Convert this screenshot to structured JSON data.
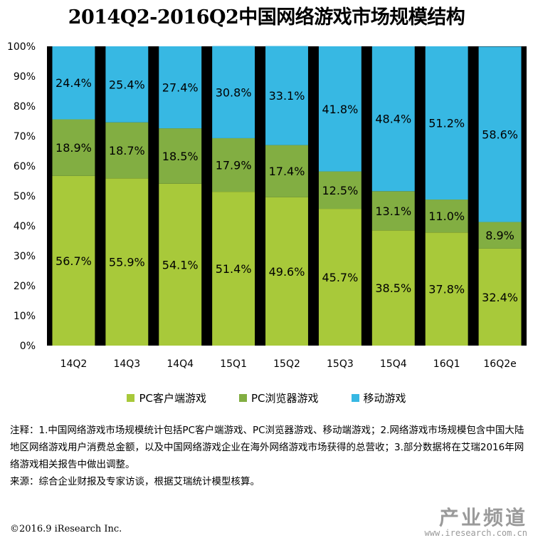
{
  "chart_data": {
    "type": "bar",
    "stacked": true,
    "percent_stacked": true,
    "title": "2014Q2-2016Q2中国网络游戏市场规模结构",
    "categories": [
      "14Q2",
      "14Q3",
      "14Q4",
      "15Q1",
      "15Q2",
      "15Q3",
      "15Q4",
      "16Q1",
      "16Q2e"
    ],
    "series": [
      {
        "name": "PC客户端游戏",
        "color": "#a8c93a",
        "values": [
          56.7,
          55.9,
          54.1,
          51.4,
          49.6,
          45.7,
          38.5,
          37.8,
          32.4
        ],
        "labels": [
          "56.7%",
          "55.9%",
          "54.1%",
          "51.4%",
          "49.6%",
          "45.7%",
          "38.5%",
          "37.8%",
          "32.4%"
        ]
      },
      {
        "name": "PC浏览器游戏",
        "color": "#82ae42",
        "values": [
          18.9,
          18.7,
          18.5,
          17.9,
          17.4,
          12.5,
          13.1,
          11.0,
          8.9
        ],
        "labels": [
          "18.9%",
          "18.7%",
          "18.5%",
          "17.9%",
          "17.4%",
          "12.5%",
          "13.1%",
          "11.0%",
          "8.9%"
        ]
      },
      {
        "name": "移动游戏",
        "color": "#37b8e3",
        "values": [
          24.4,
          25.4,
          27.4,
          30.8,
          33.1,
          41.8,
          48.4,
          51.2,
          58.6
        ],
        "labels": [
          "24.4%",
          "25.4%",
          "27.4%",
          "30.8%",
          "33.1%",
          "41.8%",
          "48.4%",
          "51.2%",
          "58.6%"
        ]
      }
    ],
    "ylim": [
      0,
      100
    ],
    "yticks": [
      "0%",
      "10%",
      "20%",
      "30%",
      "40%",
      "50%",
      "60%",
      "70%",
      "80%",
      "90%",
      "100%"
    ],
    "grid": false,
    "legend_position": "bottom"
  },
  "notes": {
    "line1": "注释：1.中国网络游戏市场规模统计包括PC客户端游戏、PC浏览器游戏、移动端游戏；2.网络游戏市场规模包含中国大陆地区网络游戏用户消费总金额，以及中国网络游戏企业在海外网络游戏市场获得的总营收；3.部分数据将在艾瑞2016年网络游戏相关报告中做出调整。",
    "line2": "来源：综合企业财报及专家访谈，根据艾瑞统计模型核算。"
  },
  "footer": "©2016.9 iResearch Inc.",
  "watermark": {
    "logo": "产业频道",
    "url": "www.iresearch.com.cn"
  },
  "colors": {
    "plot_bg": "#000000"
  }
}
